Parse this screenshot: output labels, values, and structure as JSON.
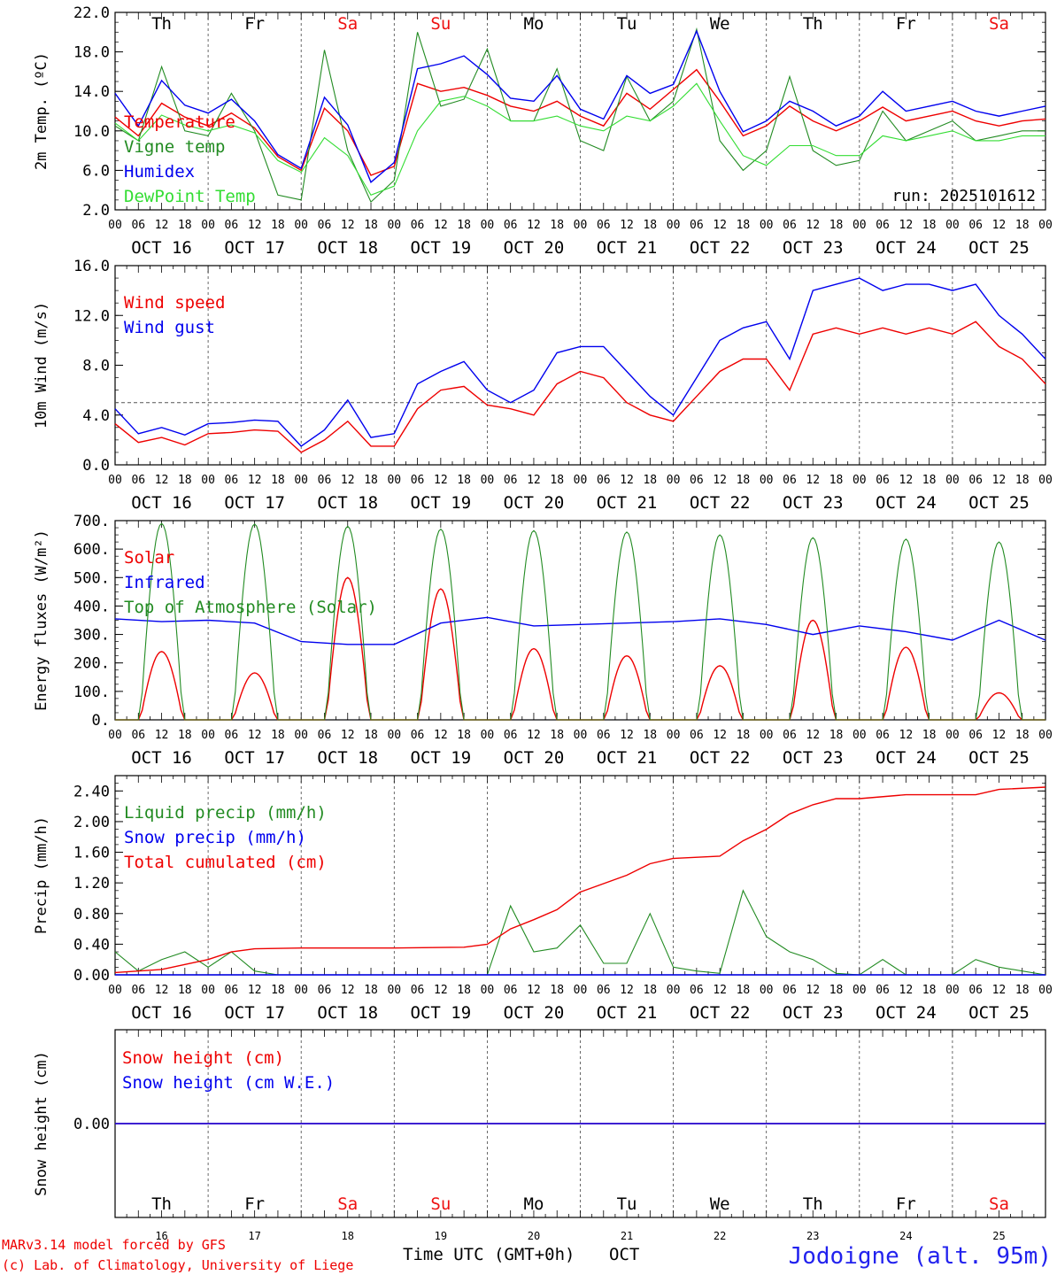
{
  "days": [
    {
      "weekday": "Th",
      "date": "OCT 16",
      "num": "16",
      "weekend": false
    },
    {
      "weekday": "Fr",
      "date": "OCT 17",
      "num": "17",
      "weekend": false
    },
    {
      "weekday": "Sa",
      "date": "OCT 18",
      "num": "18",
      "weekend": true
    },
    {
      "weekday": "Su",
      "date": "OCT 19",
      "num": "19",
      "weekend": true
    },
    {
      "weekday": "Mo",
      "date": "OCT 20",
      "num": "20",
      "weekend": false
    },
    {
      "weekday": "Tu",
      "date": "OCT 21",
      "num": "21",
      "weekend": false
    },
    {
      "weekday": "We",
      "date": "OCT 22",
      "num": "22",
      "weekend": false
    },
    {
      "weekday": "Th",
      "date": "OCT 23",
      "num": "23",
      "weekend": false
    },
    {
      "weekday": "Fr",
      "date": "OCT 24",
      "num": "24",
      "weekend": false
    },
    {
      "weekday": "Sa",
      "date": "OCT 25",
      "num": "25",
      "weekend": true
    }
  ],
  "hour_ticks": [
    "00",
    "06",
    "12",
    "18"
  ],
  "final_tick": "00",
  "colors": {
    "red": "#ee0000",
    "green": "#228b22",
    "blue": "#0000ee",
    "lightgreen": "#33dd33",
    "black": "#000000",
    "weekend": "#ee1111"
  },
  "footer": {
    "credit_line1": "MARv3.14 model forced by GFS",
    "credit_line2": "(c) Lab. of Climatology, University of Liege",
    "time_label": "Time UTC (GMT+0h)",
    "month": "OCT",
    "location": "Jodoigne (alt. 95m)"
  },
  "chart_data": [
    {
      "type": "line",
      "ylabel": "2m Temp. (ºC)",
      "ylim": [
        2,
        22
      ],
      "yticks": [
        "2.0",
        "6.0",
        "10.0",
        "14.0",
        "18.0",
        "22.0"
      ],
      "annotation": "run: 2025101612",
      "series": [
        {
          "name": "Temperature",
          "color": "red",
          "x_hours": [
            0,
            6,
            12,
            18,
            24,
            30,
            36,
            42,
            48,
            54,
            60,
            66,
            72,
            78,
            84,
            90,
            96,
            102,
            108,
            114,
            120,
            126,
            132,
            138,
            144,
            150,
            156,
            162,
            168,
            174,
            180,
            186,
            192,
            198,
            204,
            210,
            216,
            222,
            228,
            234,
            240
          ],
          "values": [
            11.4,
            9.5,
            12.8,
            11.4,
            10.5,
            11.8,
            10.3,
            7.4,
            6.0,
            12.3,
            10.0,
            5.5,
            6.4,
            14.8,
            14.0,
            14.4,
            13.6,
            12.5,
            12.0,
            13.0,
            11.5,
            10.5,
            13.8,
            12.2,
            14.2,
            16.2,
            13.0,
            9.5,
            10.5,
            12.5,
            11.0,
            10.0,
            11.0,
            12.4,
            11.0,
            11.5,
            12.0,
            11.0,
            10.5,
            11.0,
            11.2
          ]
        },
        {
          "name": "Vigne temp",
          "color": "green",
          "x_hours": [
            0,
            6,
            12,
            18,
            24,
            30,
            36,
            42,
            48,
            54,
            60,
            66,
            72,
            78,
            84,
            90,
            96,
            102,
            108,
            114,
            120,
            126,
            132,
            138,
            144,
            150,
            156,
            162,
            168,
            174,
            180,
            186,
            192,
            198,
            204,
            210,
            216,
            222,
            228,
            234,
            240
          ],
          "values": [
            10.5,
            9.0,
            16.5,
            10.0,
            9.5,
            13.8,
            10.0,
            3.5,
            3.0,
            18.2,
            8.0,
            2.8,
            5.0,
            20.0,
            12.5,
            13.2,
            18.3,
            11.0,
            11.0,
            16.3,
            9.0,
            8.0,
            15.5,
            11.0,
            13.0,
            20.3,
            9.0,
            6.0,
            8.0,
            15.5,
            8.0,
            6.5,
            7.0,
            12.0,
            9.0,
            10.0,
            11.0,
            9.0,
            9.5,
            10.0,
            10.0
          ]
        },
        {
          "name": "Humidex",
          "color": "blue",
          "x_hours": [
            0,
            6,
            12,
            18,
            24,
            30,
            36,
            42,
            48,
            54,
            60,
            66,
            72,
            78,
            84,
            90,
            96,
            102,
            108,
            114,
            120,
            126,
            132,
            138,
            144,
            150,
            156,
            162,
            168,
            174,
            180,
            186,
            192,
            198,
            204,
            210,
            216,
            222,
            228,
            234,
            240
          ],
          "values": [
            13.8,
            10.5,
            15.1,
            12.6,
            11.8,
            13.2,
            11.0,
            7.6,
            6.2,
            13.4,
            10.6,
            4.8,
            6.8,
            16.3,
            16.8,
            17.6,
            15.7,
            13.3,
            13.0,
            15.6,
            12.2,
            11.2,
            15.6,
            13.8,
            14.7,
            20.1,
            14.0,
            9.9,
            11.0,
            13.0,
            12.0,
            10.5,
            11.5,
            14.0,
            12.0,
            12.5,
            13.0,
            12.0,
            11.5,
            12.0,
            12.5
          ]
        },
        {
          "name": "DewPoint Temp",
          "color": "lightgreen",
          "x_hours": [
            0,
            6,
            12,
            18,
            24,
            30,
            36,
            42,
            48,
            54,
            60,
            66,
            72,
            78,
            84,
            90,
            96,
            102,
            108,
            114,
            120,
            126,
            132,
            138,
            144,
            150,
            156,
            162,
            168,
            174,
            180,
            186,
            192,
            198,
            204,
            210,
            216,
            222,
            228,
            234,
            240
          ],
          "values": [
            10.8,
            9.0,
            11.6,
            10.6,
            10.0,
            10.6,
            9.8,
            7.0,
            5.8,
            9.3,
            7.5,
            3.5,
            4.4,
            10.0,
            13.0,
            13.5,
            12.5,
            11.0,
            11.0,
            11.5,
            10.5,
            10.0,
            11.5,
            11.0,
            12.5,
            14.8,
            11.0,
            7.5,
            6.5,
            8.5,
            8.5,
            7.5,
            7.5,
            9.5,
            9.0,
            9.5,
            10.0,
            9.0,
            9.0,
            9.5,
            9.5
          ]
        }
      ]
    },
    {
      "type": "line",
      "ylabel": "10m Wind (m/s)",
      "ylim": [
        0,
        16
      ],
      "yticks": [
        "0.0",
        "4.0",
        "8.0",
        "12.0",
        "16.0"
      ],
      "reference_line": 5,
      "series": [
        {
          "name": "Wind speed",
          "color": "red",
          "x_hours": [
            0,
            6,
            12,
            18,
            24,
            30,
            36,
            42,
            48,
            54,
            60,
            66,
            72,
            78,
            84,
            90,
            96,
            102,
            108,
            114,
            120,
            126,
            132,
            138,
            144,
            150,
            156,
            162,
            168,
            174,
            180,
            186,
            192,
            198,
            204,
            210,
            216,
            222,
            228,
            234,
            240
          ],
          "values": [
            3.3,
            1.8,
            2.2,
            1.6,
            2.5,
            2.6,
            2.8,
            2.7,
            1.0,
            2.0,
            3.5,
            1.5,
            1.5,
            4.5,
            6.0,
            6.3,
            4.8,
            4.5,
            4.0,
            6.5,
            7.5,
            7.0,
            5.0,
            4.0,
            3.5,
            5.5,
            7.5,
            8.5,
            8.5,
            6.0,
            10.5,
            11.0,
            10.5,
            11.0,
            10.5,
            11.0,
            10.5,
            11.5,
            9.5,
            8.5,
            6.5
          ]
        },
        {
          "name": "Wind gust",
          "color": "blue",
          "x_hours": [
            0,
            6,
            12,
            18,
            24,
            30,
            36,
            42,
            48,
            54,
            60,
            66,
            72,
            78,
            84,
            90,
            96,
            102,
            108,
            114,
            120,
            126,
            132,
            138,
            144,
            150,
            156,
            162,
            168,
            174,
            180,
            186,
            192,
            198,
            204,
            210,
            216,
            222,
            228,
            234,
            240
          ],
          "values": [
            4.5,
            2.5,
            3.0,
            2.4,
            3.3,
            3.4,
            3.6,
            3.5,
            1.5,
            2.8,
            5.2,
            2.2,
            2.5,
            6.5,
            7.5,
            8.3,
            6.0,
            5.0,
            6.0,
            9.0,
            9.5,
            9.5,
            7.5,
            5.5,
            4.0,
            7.0,
            10.0,
            11.0,
            11.5,
            8.5,
            14.0,
            14.5,
            15.0,
            14.0,
            14.5,
            14.5,
            14.0,
            14.5,
            12.0,
            10.5,
            8.5
          ]
        }
      ]
    },
    {
      "type": "line",
      "ylabel": "Energy fluxes (W/m²)",
      "ylim": [
        0,
        700
      ],
      "yticks": [
        "0.",
        "100.",
        "200.",
        "300.",
        "400.",
        "500.",
        "600.",
        "700."
      ],
      "series": [
        {
          "name": "Solar",
          "color": "red",
          "daily_peaks": [
            240,
            165,
            500,
            460,
            250,
            225,
            190,
            350,
            255,
            95
          ]
        },
        {
          "name": "Infrared",
          "color": "blue",
          "x_hours": [
            0,
            12,
            24,
            36,
            48,
            60,
            72,
            84,
            96,
            108,
            120,
            132,
            144,
            156,
            168,
            180,
            192,
            204,
            216,
            228,
            240
          ],
          "values": [
            355,
            345,
            350,
            340,
            275,
            265,
            265,
            340,
            360,
            330,
            335,
            340,
            345,
            355,
            335,
            300,
            330,
            310,
            280,
            350,
            280
          ]
        },
        {
          "name": "Top of Atmosphere (Solar)",
          "color": "green",
          "daily_peaks": [
            690,
            688,
            680,
            670,
            665,
            660,
            650,
            640,
            635,
            625
          ]
        }
      ]
    },
    {
      "type": "line",
      "ylabel": "Precip (mm/h)",
      "ylim": [
        0,
        2.6
      ],
      "yticks": [
        "0.00",
        "0.40",
        "0.80",
        "1.20",
        "1.60",
        "2.00",
        "2.40"
      ],
      "series": [
        {
          "name": "Liquid precip (mm/h)",
          "color": "green",
          "x_hours": [
            0,
            6,
            12,
            18,
            24,
            30,
            36,
            42,
            48,
            60,
            72,
            84,
            96,
            102,
            108,
            114,
            120,
            126,
            132,
            138,
            144,
            150,
            156,
            162,
            168,
            174,
            180,
            186,
            192,
            198,
            204,
            210,
            216,
            222,
            228,
            234,
            240
          ],
          "values": [
            0.3,
            0.05,
            0.2,
            0.3,
            0.1,
            0.3,
            0.05,
            0,
            0,
            0,
            0,
            0,
            0,
            0.9,
            0.3,
            0.35,
            0.65,
            0.15,
            0.15,
            0.8,
            0.1,
            0.05,
            0.02,
            1.1,
            0.5,
            0.3,
            0.2,
            0.02,
            0,
            0.2,
            0,
            0,
            0,
            0.2,
            0.1,
            0.05,
            0
          ]
        },
        {
          "name": "Snow precip (mm/h)",
          "color": "blue",
          "x_hours": [
            0,
            240
          ],
          "values": [
            0,
            0
          ]
        },
        {
          "name": "Total cumulated (cm)",
          "color": "red",
          "x_hours": [
            0,
            12,
            24,
            30,
            36,
            48,
            72,
            90,
            96,
            102,
            108,
            114,
            120,
            132,
            138,
            144,
            156,
            162,
            168,
            174,
            180,
            186,
            192,
            204,
            216,
            222,
            228,
            240
          ],
          "values": [
            0.03,
            0.07,
            0.2,
            0.3,
            0.34,
            0.35,
            0.35,
            0.36,
            0.4,
            0.6,
            0.72,
            0.85,
            1.08,
            1.3,
            1.45,
            1.52,
            1.55,
            1.75,
            1.9,
            2.1,
            2.22,
            2.3,
            2.3,
            2.35,
            2.35,
            2.35,
            2.42,
            2.45
          ]
        }
      ]
    },
    {
      "type": "line",
      "ylabel": "Snow height (cm)",
      "yticks": [
        "0.00"
      ],
      "series": [
        {
          "name": "Snow height (cm)",
          "color": "red",
          "x_hours": [
            0,
            240
          ],
          "values": [
            0,
            0
          ]
        },
        {
          "name": "Snow height (cm W.E.)",
          "color": "blue",
          "x_hours": [
            0,
            240
          ],
          "values": [
            0,
            0
          ]
        }
      ]
    }
  ]
}
